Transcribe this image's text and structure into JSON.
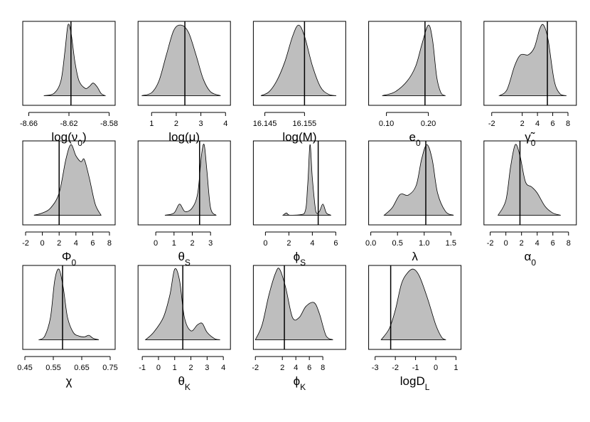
{
  "chart_data": [
    {
      "type": "density",
      "xlabel": [
        {
          "text": "log(ν"
        },
        {
          "text": "0",
          "sub": true
        },
        {
          "text": ")"
        }
      ],
      "xlim": [
        -8.666,
        -8.574
      ],
      "xticks": [
        -8.66,
        -8.62,
        -8.58
      ],
      "ylim": [
        -0.13,
        1.0
      ],
      "color": "#bebebe",
      "vline": -8.618,
      "x": [
        -8.645,
        -8.635,
        -8.628,
        -8.624,
        -8.621,
        -8.618,
        -8.614,
        -8.61,
        -8.604,
        -8.6,
        -8.596,
        -8.592,
        -8.588,
        -8.584
      ],
      "y": [
        0,
        0.03,
        0.2,
        0.6,
        0.95,
        0.85,
        0.45,
        0.2,
        0.1,
        0.12,
        0.17,
        0.12,
        0.03,
        0
      ]
    },
    {
      "type": "density",
      "xlabel": [
        {
          "text": "log(μ)"
        }
      ],
      "xlim": [
        0.45,
        4.2
      ],
      "xticks": [
        1,
        2,
        3,
        4
      ],
      "ylim": [
        -0.13,
        1.0
      ],
      "color": "#bebebe",
      "vline": 2.35,
      "x": [
        0.6,
        1.0,
        1.3,
        1.6,
        1.9,
        2.2,
        2.5,
        2.8,
        3.1,
        3.4,
        3.8
      ],
      "y": [
        0,
        0.04,
        0.2,
        0.55,
        0.88,
        0.95,
        0.85,
        0.55,
        0.22,
        0.05,
        0
      ]
    },
    {
      "type": "density",
      "xlabel": [
        {
          "text": "log(M)"
        }
      ],
      "xlim": [
        16.1421,
        16.1654
      ],
      "xticks": [
        16.145,
        16.155
      ],
      "ylim": [
        -0.13,
        1.0
      ],
      "color": "#bebebe",
      "vline": 16.155,
      "x": [
        16.144,
        16.146,
        16.148,
        16.15,
        16.152,
        16.1535,
        16.155,
        16.157,
        16.159,
        16.161,
        16.163
      ],
      "y": [
        0,
        0.05,
        0.2,
        0.45,
        0.8,
        0.95,
        0.8,
        0.4,
        0.12,
        0.02,
        0
      ]
    },
    {
      "type": "density",
      "xlabel": [
        {
          "text": "e"
        },
        {
          "text": "0",
          "sub": true
        }
      ],
      "xlim": [
        0.0576,
        0.278
      ],
      "xticks": [
        {
          "value": 0.1,
          "label": "0.10"
        },
        {
          "value": 0.2,
          "label": "0.20"
        }
      ],
      "ylim": [
        -0.13,
        1.0
      ],
      "color": "#bebebe",
      "vline": 0.192,
      "x": [
        0.09,
        0.12,
        0.15,
        0.17,
        0.185,
        0.2,
        0.21,
        0.22,
        0.23,
        0.24
      ],
      "y": [
        0,
        0.05,
        0.2,
        0.4,
        0.7,
        0.95,
        0.75,
        0.25,
        0.04,
        0
      ]
    },
    {
      "type": "density",
      "xlabel": [
        {
          "text": "γ̃"
        },
        {
          "text": "0",
          "sub": true
        }
      ],
      "xlim": [
        -3.02,
        9.1
      ],
      "xticks": [
        -2,
        2,
        4,
        6,
        8
      ],
      "ylim": [
        -0.13,
        1.0
      ],
      "color": "#bebebe",
      "vline": 5.3,
      "x": [
        -1,
        0,
        1,
        1.8,
        2.8,
        3.6,
        4.3,
        4.8,
        5.4,
        6.2,
        7,
        7.8
      ],
      "y": [
        0,
        0.08,
        0.4,
        0.55,
        0.55,
        0.65,
        0.9,
        0.95,
        0.75,
        0.2,
        0.02,
        0
      ]
    },
    {
      "type": "density",
      "xlabel": [
        {
          "text": "Φ"
        },
        {
          "text": "0",
          "sub": true
        }
      ],
      "xlim": [
        -2.34,
        8.68
      ],
      "xticks": [
        -2,
        0,
        2,
        4,
        6,
        8
      ],
      "ylim": [
        -0.13,
        1.0
      ],
      "color": "#bebebe",
      "vline": 2.0,
      "x": [
        -1,
        0,
        1,
        2,
        2.8,
        3.4,
        4,
        4.6,
        5,
        5.6,
        6.3,
        7
      ],
      "y": [
        0,
        0.03,
        0.1,
        0.3,
        0.75,
        0.95,
        0.8,
        0.72,
        0.75,
        0.5,
        0.15,
        0
      ]
    },
    {
      "type": "density",
      "xlabel": [
        {
          "text": "θ"
        },
        {
          "text": "S",
          "sub": true
        }
      ],
      "xlim": [
        -0.97,
        4.09
      ],
      "xticks": [
        0,
        1,
        2,
        3
      ],
      "ylim": [
        -0.13,
        1.0
      ],
      "color": "#bebebe",
      "vline": 2.4,
      "x": [
        0.5,
        1,
        1.3,
        1.6,
        2,
        2.3,
        2.5,
        2.65,
        2.8,
        3,
        3.3
      ],
      "y": [
        0,
        0.03,
        0.15,
        0.05,
        0.1,
        0.3,
        0.8,
        0.95,
        0.6,
        0.1,
        0
      ]
    },
    {
      "type": "density",
      "xlabel": [
        {
          "text": "ϕ"
        },
        {
          "text": "S",
          "sub": true
        }
      ],
      "xlim": [
        -1.03,
        6.85
      ],
      "xticks": [
        0,
        2,
        4,
        6
      ],
      "ylim": [
        -0.13,
        1.0
      ],
      "color": "#bebebe",
      "vline": 4.5,
      "x": [
        1.5,
        1.8,
        2.1,
        3.3,
        3.6,
        3.8,
        4.0,
        4.3,
        4.6,
        4.9,
        5.2,
        5.6
      ],
      "y": [
        0,
        0.03,
        0,
        0.02,
        0.4,
        0.95,
        0.5,
        0.05,
        0.05,
        0.15,
        0.03,
        0
      ]
    },
    {
      "type": "density",
      "xlabel": [
        {
          "text": "λ"
        }
      ],
      "xlim": [
        -0.04,
        1.69
      ],
      "xticks": [
        {
          "value": 0,
          "label": "0.0"
        },
        0.5,
        {
          "value": 1,
          "label": "1.0"
        },
        1.5
      ],
      "ylim": [
        -0.13,
        1.0
      ],
      "color": "#bebebe",
      "vline": 1.03,
      "x": [
        0.25,
        0.4,
        0.55,
        0.7,
        0.85,
        0.95,
        1.05,
        1.15,
        1.25,
        1.4,
        1.55
      ],
      "y": [
        0,
        0.1,
        0.28,
        0.27,
        0.4,
        0.75,
        0.95,
        0.75,
        0.3,
        0.05,
        0
      ]
    },
    {
      "type": "density",
      "xlabel": [
        {
          "text": "α"
        },
        {
          "text": "0",
          "sub": true
        }
      ],
      "xlim": [
        -2.8,
        9
      ],
      "xticks": [
        -2,
        0,
        2,
        4,
        6,
        8
      ],
      "ylim": [
        -0.13,
        1.0
      ],
      "color": "#bebebe",
      "vline": 1.8,
      "x": [
        -1,
        0,
        0.6,
        1.2,
        1.8,
        2.5,
        3.3,
        4,
        5,
        6,
        7
      ],
      "y": [
        0,
        0.2,
        0.65,
        0.95,
        0.8,
        0.45,
        0.38,
        0.3,
        0.12,
        0.03,
        0
      ]
    },
    {
      "type": "density",
      "xlabel": [
        {
          "text": "χ"
        }
      ],
      "xlim": [
        0.4425,
        0.7675
      ],
      "xticks": [
        0.45,
        0.55,
        0.65,
        0.75
      ],
      "ylim": [
        -0.13,
        1.0
      ],
      "color": "#bebebe",
      "vline": 0.5825,
      "x": [
        0.5,
        0.52,
        0.54,
        0.555,
        0.57,
        0.585,
        0.6,
        0.62,
        0.64,
        0.66,
        0.675,
        0.69,
        0.71
      ],
      "y": [
        0,
        0.05,
        0.3,
        0.8,
        0.95,
        0.7,
        0.3,
        0.1,
        0.05,
        0.04,
        0.06,
        0.02,
        0
      ]
    },
    {
      "type": "density",
      "xlabel": [
        {
          "text": "θ"
        },
        {
          "text": "K",
          "sub": true
        }
      ],
      "xlim": [
        -1.26,
        4.44
      ],
      "xticks": [
        -1,
        0,
        1,
        2,
        3,
        4
      ],
      "ylim": [
        -0.13,
        1.0
      ],
      "color": "#bebebe",
      "vline": 1.5,
      "x": [
        -0.8,
        -0.3,
        0.3,
        0.7,
        1.0,
        1.3,
        1.6,
        2.0,
        2.4,
        2.7,
        3.0,
        3.5,
        3.8
      ],
      "y": [
        0,
        0.1,
        0.3,
        0.6,
        0.95,
        0.8,
        0.3,
        0.12,
        0.2,
        0.22,
        0.1,
        0.01,
        0
      ]
    },
    {
      "type": "density",
      "xlabel": [
        {
          "text": "ϕ"
        },
        {
          "text": "K",
          "sub": true
        }
      ],
      "xlim": [
        -2.3,
        11.4
      ],
      "xticks": [
        -2,
        2,
        4,
        6,
        8
      ],
      "ylim": [
        -0.13,
        1.0
      ],
      "color": "#bebebe",
      "vline": 2.3,
      "x": [
        -2,
        -1,
        0,
        1,
        1.6,
        2.5,
        3.5,
        4.5,
        5.5,
        6.7,
        7.5,
        8.5,
        9.5
      ],
      "y": [
        0,
        0.2,
        0.6,
        0.9,
        0.95,
        0.7,
        0.3,
        0.3,
        0.45,
        0.5,
        0.35,
        0.05,
        0
      ]
    },
    {
      "type": "density",
      "xlabel": [
        {
          "text": "logD"
        },
        {
          "text": "L",
          "sub": true
        }
      ],
      "xlim": [
        -3.32,
        1.25
      ],
      "xticks": [
        -3,
        -2,
        -1,
        0,
        1
      ],
      "ylim": [
        -0.13,
        1.0
      ],
      "color": "#bebebe",
      "vline": -2.23,
      "x": [
        -2.7,
        -2.3,
        -2,
        -1.7,
        -1.4,
        -1.1,
        -0.8,
        -0.4,
        0,
        0.3,
        0.5
      ],
      "y": [
        0,
        0.15,
        0.4,
        0.75,
        0.9,
        0.95,
        0.85,
        0.55,
        0.2,
        0.03,
        0
      ]
    }
  ]
}
